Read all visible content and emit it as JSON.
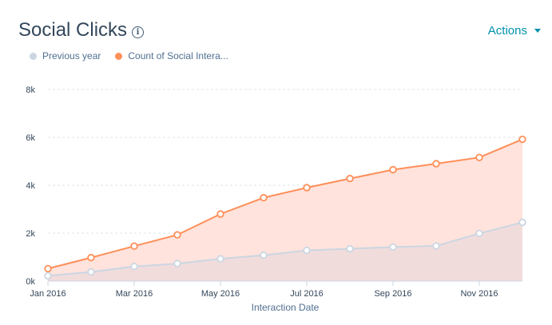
{
  "header": {
    "title": "Social Clicks",
    "info_icon": "info-icon",
    "actions_label": "Actions"
  },
  "legend": [
    {
      "label": "Previous year",
      "color": "#cbd6e2"
    },
    {
      "label": "Count of Social Intera...",
      "color": "#ff8f59"
    }
  ],
  "chart_data": {
    "type": "area",
    "title": "Social Clicks",
    "xlabel": "Interaction Date",
    "ylabel": "",
    "ylim": [
      0,
      8000
    ],
    "yticks": [
      {
        "value": 0,
        "label": "0k"
      },
      {
        "value": 2000,
        "label": "2k"
      },
      {
        "value": 4000,
        "label": "4k"
      },
      {
        "value": 6000,
        "label": "6k"
      },
      {
        "value": 8000,
        "label": "8k"
      }
    ],
    "x": [
      "Jan 2016",
      "Feb 2016",
      "Mar 2016",
      "Apr 2016",
      "May 2016",
      "Jun 2016",
      "Jul 2016",
      "Aug 2016",
      "Sep 2016",
      "Oct 2016",
      "Nov 2016",
      "Dec 2016"
    ],
    "xtick_labels": [
      {
        "index": 0,
        "label": "Jan 2016"
      },
      {
        "index": 2,
        "label": "Mar 2016"
      },
      {
        "index": 4,
        "label": "May 2016"
      },
      {
        "index": 6,
        "label": "Jul 2016"
      },
      {
        "index": 8,
        "label": "Sep 2016"
      },
      {
        "index": 10,
        "label": "Nov 2016"
      }
    ],
    "grid": true,
    "legend_position": "top-left",
    "series": [
      {
        "name": "Count of Social Intera...",
        "color": "#ff8f59",
        "fill": "#ffe3dc",
        "values": [
          520,
          980,
          1460,
          1930,
          2800,
          3480,
          3900,
          4280,
          4650,
          4900,
          5160,
          5920
        ]
      },
      {
        "name": "Previous year",
        "color": "#cbd6e2",
        "fill": "#f1dcdc",
        "values": [
          220,
          380,
          610,
          730,
          930,
          1080,
          1280,
          1350,
          1420,
          1470,
          1990,
          2450
        ]
      }
    ]
  }
}
